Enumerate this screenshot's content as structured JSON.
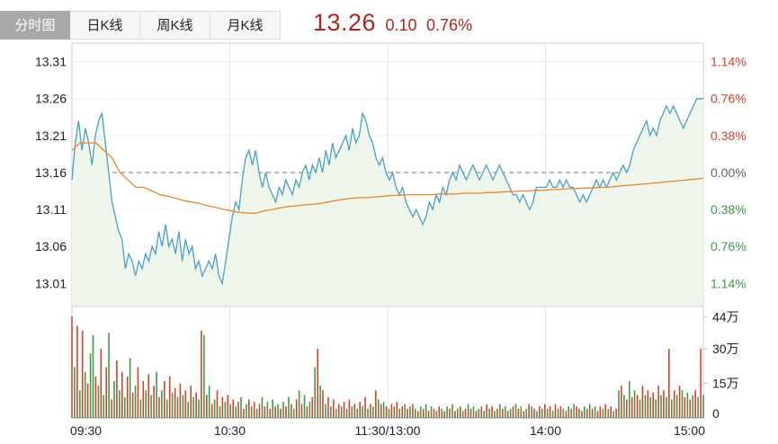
{
  "tabs": [
    {
      "label": "分时图",
      "active": true
    },
    {
      "label": "日K线",
      "active": false
    },
    {
      "label": "周K线",
      "active": false
    },
    {
      "label": "月K线",
      "active": false
    }
  ],
  "quote": {
    "price": "13.26",
    "change": "0.10",
    "percent": "0.76%",
    "color": "#b0261f"
  },
  "colors": {
    "price_line": "#4a9fc4",
    "avg_line": "#e8872c",
    "up": "#d5412f",
    "down": "#3f9a4a",
    "area": "#eef6ec"
  },
  "chart_data": [
    {
      "type": "line",
      "title": "",
      "prev_close": 13.16,
      "ylim": [
        12.98,
        13.335
      ],
      "y_ticks": [
        "13.31",
        "13.26",
        "13.21",
        "13.16",
        "13.11",
        "13.06",
        "13.01"
      ],
      "y_tick_values": [
        13.31,
        13.26,
        13.21,
        13.16,
        13.11,
        13.06,
        13.01
      ],
      "right_ticks": [
        "1.14%",
        "0.76%",
        "0.38%",
        "0.00%",
        "0.38%",
        "0.76%",
        "1.14%"
      ],
      "x_ticks": [
        "09:30",
        "10:30",
        "11:30/13:00",
        "14:00",
        "15:00"
      ],
      "x_tick_values": [
        0,
        60,
        120,
        180,
        240
      ],
      "x_range": [
        0,
        240
      ],
      "series": [
        {
          "role": "price",
          "values": [
            13.15,
            13.2,
            13.23,
            13.19,
            13.22,
            13.2,
            13.17,
            13.21,
            13.23,
            13.24,
            13.2,
            13.16,
            13.12,
            13.1,
            13.08,
            13.07,
            13.03,
            13.05,
            13.04,
            13.02,
            13.04,
            13.03,
            13.05,
            13.04,
            13.06,
            13.05,
            13.08,
            13.06,
            13.09,
            13.06,
            13.07,
            13.05,
            13.08,
            13.04,
            13.07,
            13.05,
            13.06,
            13.03,
            13.04,
            13.02,
            13.03,
            13.04,
            13.03,
            13.05,
            13.02,
            13.01,
            13.04,
            13.07,
            13.1,
            13.12,
            13.11,
            13.15,
            13.18,
            13.19,
            13.17,
            13.19,
            13.16,
            13.14,
            13.16,
            13.14,
            13.13,
            13.12,
            13.14,
            13.13,
            13.15,
            13.14,
            13.13,
            13.15,
            13.14,
            13.16,
            13.17,
            13.15,
            13.17,
            13.16,
            13.18,
            13.16,
            13.19,
            13.17,
            13.2,
            13.18,
            13.19,
            13.2,
            13.21,
            13.19,
            13.22,
            13.2,
            13.21,
            13.24,
            13.23,
            13.21,
            13.2,
            13.18,
            13.17,
            13.18,
            13.16,
            13.15,
            13.16,
            13.14,
            13.13,
            13.14,
            13.12,
            13.11,
            13.1,
            13.11,
            13.1,
            13.09,
            13.1,
            13.12,
            13.11,
            13.13,
            13.12,
            13.14,
            13.13,
            13.15,
            13.16,
            13.15,
            13.17,
            13.16,
            13.15,
            13.16,
            13.17,
            13.16,
            13.15,
            13.16,
            13.17,
            13.16,
            13.15,
            13.16,
            13.17,
            13.16,
            13.15,
            13.14,
            13.13,
            13.13,
            13.12,
            13.13,
            13.12,
            13.11,
            13.12,
            13.14,
            13.14,
            13.14,
            13.14,
            13.15,
            13.14,
            13.14,
            13.15,
            13.14,
            13.15,
            13.14,
            13.14,
            13.13,
            13.12,
            13.13,
            13.12,
            13.13,
            13.14,
            13.15,
            13.14,
            13.15,
            13.14,
            13.15,
            13.16,
            13.15,
            13.16,
            13.17,
            13.16,
            13.17,
            13.19,
            13.2,
            13.21,
            13.22,
            13.23,
            13.21,
            13.22,
            13.21,
            13.23,
            13.24,
            13.25,
            13.24,
            13.25,
            13.24,
            13.23,
            13.22,
            13.23,
            13.24,
            13.25,
            13.26,
            13.26,
            13.26
          ]
        },
        {
          "role": "average",
          "values": [
            13.19,
            13.2,
            13.2,
            13.2,
            13.19,
            13.18,
            13.16,
            13.15,
            13.14,
            13.14,
            13.135,
            13.13,
            13.128,
            13.125,
            13.122,
            13.12,
            13.118,
            13.115,
            13.113,
            13.11,
            13.108,
            13.106,
            13.105,
            13.105,
            13.108,
            13.11,
            13.112,
            13.114,
            13.115,
            13.116,
            13.117,
            13.118,
            13.12,
            13.122,
            13.124,
            13.125,
            13.126,
            13.126,
            13.127,
            13.128,
            13.129,
            13.129,
            13.13,
            13.13,
            13.13,
            13.13,
            13.131,
            13.131,
            13.131,
            13.132,
            13.132,
            13.132,
            13.133,
            13.133,
            13.134,
            13.134,
            13.135,
            13.135,
            13.136,
            13.136,
            13.137,
            13.137,
            13.138,
            13.138,
            13.139,
            13.139,
            13.14,
            13.14,
            13.141,
            13.142,
            13.143,
            13.144,
            13.145,
            13.146,
            13.147,
            13.148,
            13.149,
            13.15,
            13.151,
            13.152
          ]
        }
      ]
    },
    {
      "type": "bar",
      "title": "",
      "y_ticks": [
        "44万",
        "30万",
        "15万",
        "0"
      ],
      "y_tick_values": [
        44,
        30,
        15,
        0
      ],
      "ylim": [
        0,
        48
      ],
      "x_range": [
        0,
        240
      ],
      "values": [
        44,
        22,
        40,
        12,
        38,
        20,
        15,
        28,
        36,
        18,
        14,
        30,
        10,
        22,
        37,
        8,
        16,
        25,
        12,
        20,
        9,
        18,
        26,
        11,
        14,
        22,
        8,
        16,
        12,
        19,
        10,
        14,
        20,
        9,
        12,
        16,
        8,
        18,
        11,
        13,
        9,
        15,
        10,
        12,
        7,
        14,
        9,
        11,
        8,
        38,
        36,
        10,
        14,
        6,
        8,
        12,
        5,
        9,
        7,
        10,
        6,
        8,
        5,
        7,
        9,
        4,
        6,
        8,
        5,
        7,
        4,
        6,
        9,
        5,
        7,
        4,
        8,
        5,
        6,
        4,
        7,
        5,
        9,
        6,
        4,
        8,
        12,
        6,
        10,
        5,
        7,
        9,
        22,
        30,
        14,
        12,
        6,
        9,
        5,
        8,
        4,
        6,
        5,
        7,
        4,
        8,
        5,
        6,
        4,
        7,
        5,
        9,
        4,
        6,
        5,
        12,
        8,
        6,
        7,
        5,
        4,
        6,
        5,
        7,
        4,
        5,
        6,
        4,
        5,
        6,
        4,
        3,
        5,
        4,
        6,
        3,
        5,
        4,
        3,
        5,
        4,
        3,
        5,
        4,
        6,
        3,
        4,
        5,
        3,
        4,
        6,
        4,
        5,
        3,
        4,
        5,
        3,
        6,
        4,
        5,
        3,
        4,
        6,
        4,
        5,
        3,
        4,
        5,
        6,
        4,
        5,
        3,
        4,
        6,
        5,
        4,
        3,
        5,
        4,
        6,
        4,
        5,
        3,
        6,
        4,
        5,
        4,
        3,
        5,
        4,
        6,
        5,
        4,
        3,
        5,
        4,
        6,
        4,
        5,
        3,
        5,
        4,
        6,
        4,
        5,
        3,
        4,
        12,
        14,
        10,
        8,
        16,
        9,
        12,
        10,
        8,
        14,
        10,
        12,
        9,
        11,
        8,
        14,
        10,
        12,
        9,
        30,
        8,
        12,
        10,
        14,
        12,
        9,
        11,
        8,
        10,
        12,
        9,
        30,
        10
      ],
      "directions": [
        "u",
        "d",
        "u",
        "d",
        "u",
        "d",
        "u",
        "d",
        "d",
        "u",
        "d",
        "u",
        "d",
        "u",
        "d",
        "u",
        "d",
        "u",
        "d",
        "u",
        "d",
        "u",
        "d",
        "u",
        "d",
        "u",
        "d",
        "u",
        "d",
        "u",
        "d",
        "u",
        "d",
        "u",
        "d",
        "u",
        "d",
        "u",
        "d",
        "u",
        "d",
        "u",
        "d",
        "u",
        "d",
        "u",
        "d",
        "u",
        "d",
        "u",
        "d",
        "u",
        "d",
        "u",
        "d",
        "u",
        "d",
        "u",
        "d",
        "u",
        "d",
        "u",
        "d",
        "u",
        "d",
        "u",
        "d",
        "u",
        "d",
        "u",
        "d",
        "u",
        "d",
        "u",
        "d",
        "u",
        "d",
        "u",
        "d",
        "u",
        "d",
        "u",
        "d",
        "u",
        "d",
        "u",
        "d",
        "u",
        "d",
        "u",
        "d",
        "u",
        "d",
        "u",
        "d",
        "u",
        "d",
        "u",
        "d",
        "u",
        "d",
        "u",
        "d",
        "u",
        "d",
        "u",
        "d",
        "u",
        "d",
        "u",
        "d",
        "u",
        "d",
        "u",
        "d",
        "u",
        "d",
        "u",
        "d",
        "u",
        "d",
        "u",
        "d",
        "u",
        "d",
        "u",
        "d",
        "u",
        "d",
        "u",
        "d",
        "u",
        "d",
        "u",
        "d",
        "u",
        "d",
        "u",
        "d",
        "u",
        "d",
        "u",
        "d",
        "u",
        "d",
        "u",
        "d",
        "u",
        "d",
        "u",
        "d",
        "u",
        "d",
        "u",
        "d",
        "u",
        "d",
        "u",
        "d",
        "u",
        "d",
        "u",
        "d",
        "u",
        "d",
        "u",
        "d",
        "u",
        "d",
        "u",
        "d",
        "u",
        "d",
        "u",
        "d",
        "u",
        "d",
        "u",
        "d",
        "u",
        "d",
        "u",
        "d",
        "u",
        "d",
        "u",
        "d",
        "u",
        "d",
        "u",
        "d",
        "u",
        "d",
        "u",
        "d",
        "u",
        "d",
        "u",
        "d",
        "u",
        "u",
        "d",
        "u",
        "d",
        "u",
        "d",
        "u",
        "d",
        "u",
        "d",
        "u",
        "d",
        "u",
        "d",
        "u",
        "d",
        "u",
        "d",
        "u",
        "d",
        "u",
        "d",
        "u",
        "d",
        "u",
        "d",
        "u",
        "d",
        "u",
        "d",
        "u",
        "d",
        "u",
        "d",
        "u",
        "d",
        "u",
        "d",
        "u",
        "d"
      ]
    }
  ]
}
